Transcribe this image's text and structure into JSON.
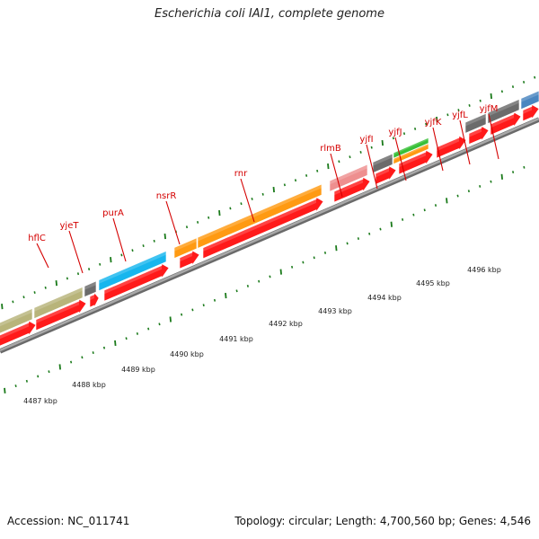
{
  "title": "Escherichia coli IAI1, complete genome",
  "footer": {
    "accession_label": "Accession:",
    "accession": "NC_011741",
    "topology_label": "Topology:",
    "topology": "circular",
    "length_label": "Length:",
    "length": "4,700,560 bp",
    "genes_label": "Genes:",
    "genes": "4,546"
  },
  "colors": {
    "backbone": "#8c8c8c",
    "cds_forward": "#ff1a1a",
    "label_line": "#d40000",
    "tick": "#1a7a1a",
    "olive": "#b8b47a",
    "gray_gene": "#6b6b6b",
    "cyan": "#17b6ee",
    "orange": "#ff9a12",
    "pink": "#ee8f8f",
    "green": "#38c038",
    "steel_blue": "#4a86c0"
  },
  "gene_labels": [
    "hflC",
    "yjeT",
    "purA",
    "nsrR",
    "rnr",
    "rlmB",
    "yjfI",
    "yjfJ",
    "yjfK",
    "yjfL",
    "yjfM"
  ],
  "kbp_labels": [
    "4487 kbp",
    "4488 kbp",
    "4489 kbp",
    "4490 kbp",
    "4491 kbp",
    "4492 kbp",
    "4493 kbp",
    "4494 kbp",
    "4495 kbp",
    "4496 kbp"
  ]
}
